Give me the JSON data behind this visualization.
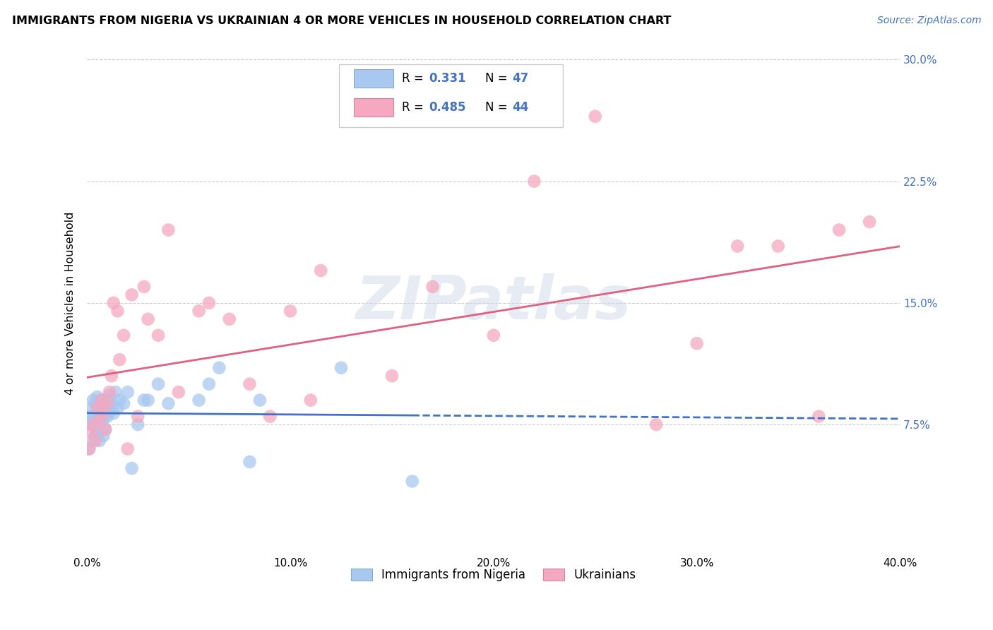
{
  "title": "IMMIGRANTS FROM NIGERIA VS UKRAINIAN 4 OR MORE VEHICLES IN HOUSEHOLD CORRELATION CHART",
  "source": "Source: ZipAtlas.com",
  "ylabel": "4 or more Vehicles in Household",
  "xmin": 0.0,
  "xmax": 0.4,
  "ymin": 0.0,
  "ymax": 0.3,
  "yticks": [
    0.075,
    0.15,
    0.225,
    0.3
  ],
  "ytick_labels": [
    "7.5%",
    "15.0%",
    "22.5%",
    "30.0%"
  ],
  "xticks": [
    0.0,
    0.1,
    0.2,
    0.3,
    0.4
  ],
  "xtick_labels": [
    "0.0%",
    "10.0%",
    "20.0%",
    "30.0%",
    "40.0%"
  ],
  "nigeria_R": "0.331",
  "nigeria_N": "47",
  "ukraine_R": "0.485",
  "ukraine_N": "44",
  "nigeria_color": "#a8c8f0",
  "ukraine_color": "#f5a8c0",
  "nigeria_line_color": "#4472c4",
  "ukraine_line_color": "#e06080",
  "right_tick_color": "#4472c4",
  "watermark_text": "ZIPatlas",
  "nigeria_x": [
    0.001,
    0.001,
    0.002,
    0.002,
    0.003,
    0.003,
    0.003,
    0.004,
    0.004,
    0.004,
    0.005,
    0.005,
    0.005,
    0.006,
    0.006,
    0.006,
    0.007,
    0.007,
    0.008,
    0.008,
    0.008,
    0.009,
    0.009,
    0.01,
    0.01,
    0.011,
    0.011,
    0.012,
    0.013,
    0.014,
    0.015,
    0.016,
    0.018,
    0.02,
    0.022,
    0.025,
    0.028,
    0.03,
    0.035,
    0.04,
    0.055,
    0.06,
    0.065,
    0.08,
    0.085,
    0.125,
    0.16
  ],
  "nigeria_y": [
    0.08,
    0.06,
    0.085,
    0.075,
    0.09,
    0.078,
    0.065,
    0.088,
    0.075,
    0.068,
    0.092,
    0.082,
    0.07,
    0.086,
    0.076,
    0.065,
    0.09,
    0.08,
    0.088,
    0.078,
    0.068,
    0.085,
    0.072,
    0.09,
    0.08,
    0.093,
    0.083,
    0.088,
    0.082,
    0.095,
    0.085,
    0.09,
    0.088,
    0.095,
    0.048,
    0.075,
    0.09,
    0.09,
    0.1,
    0.088,
    0.09,
    0.1,
    0.11,
    0.052,
    0.09,
    0.11,
    0.04
  ],
  "ukraine_x": [
    0.001,
    0.002,
    0.003,
    0.004,
    0.005,
    0.006,
    0.007,
    0.008,
    0.009,
    0.01,
    0.011,
    0.012,
    0.013,
    0.015,
    0.016,
    0.018,
    0.02,
    0.022,
    0.025,
    0.028,
    0.03,
    0.035,
    0.04,
    0.045,
    0.055,
    0.06,
    0.07,
    0.08,
    0.09,
    0.1,
    0.11,
    0.115,
    0.15,
    0.17,
    0.2,
    0.22,
    0.25,
    0.28,
    0.3,
    0.32,
    0.34,
    0.36,
    0.37,
    0.385
  ],
  "ukraine_y": [
    0.06,
    0.07,
    0.075,
    0.065,
    0.085,
    0.078,
    0.09,
    0.082,
    0.072,
    0.088,
    0.095,
    0.105,
    0.15,
    0.145,
    0.115,
    0.13,
    0.06,
    0.155,
    0.08,
    0.16,
    0.14,
    0.13,
    0.195,
    0.095,
    0.145,
    0.15,
    0.14,
    0.1,
    0.08,
    0.145,
    0.09,
    0.17,
    0.105,
    0.16,
    0.13,
    0.225,
    0.265,
    0.075,
    0.125,
    0.185,
    0.185,
    0.08,
    0.195,
    0.2
  ]
}
